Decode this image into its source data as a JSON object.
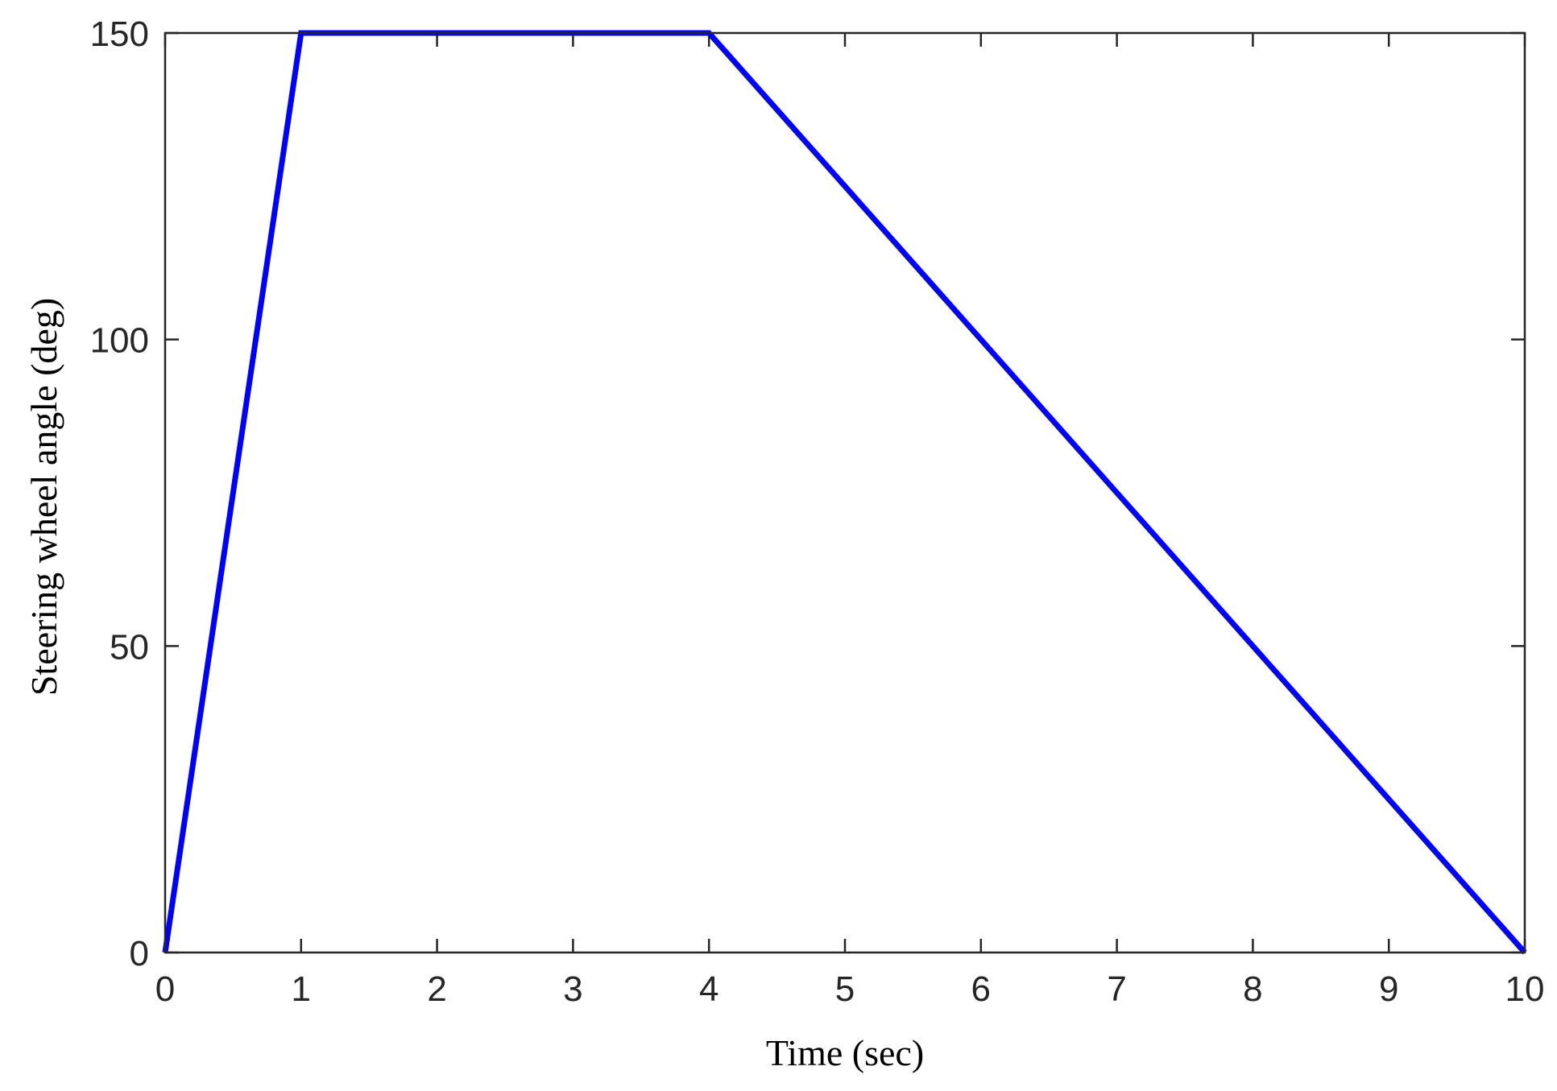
{
  "chart_data": {
    "type": "line",
    "title": "",
    "xlabel": "Time (sec)",
    "ylabel": "Steering wheel angle (deg)",
    "xlim": [
      0,
      10
    ],
    "ylim": [
      0,
      150
    ],
    "xticks": [
      0,
      1,
      2,
      3,
      4,
      5,
      6,
      7,
      8,
      9,
      10
    ],
    "yticks": [
      0,
      50,
      100,
      150
    ],
    "grid": false,
    "legend": "none",
    "series": [
      {
        "color": "#0000ff",
        "x": [
          0,
          1,
          4,
          10
        ],
        "y": [
          0,
          150,
          150,
          0
        ]
      }
    ]
  },
  "colors": {
    "line": "#0000ff",
    "axes": "#262626",
    "background": "#ffffff"
  }
}
